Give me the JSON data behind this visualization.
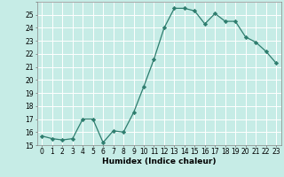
{
  "x": [
    0,
    1,
    2,
    3,
    4,
    5,
    6,
    7,
    8,
    9,
    10,
    11,
    12,
    13,
    14,
    15,
    16,
    17,
    18,
    19,
    20,
    21,
    22,
    23
  ],
  "y": [
    15.7,
    15.5,
    15.4,
    15.5,
    17.0,
    17.0,
    15.2,
    16.1,
    16.0,
    17.5,
    19.5,
    21.6,
    24.0,
    25.5,
    25.5,
    25.3,
    24.3,
    25.1,
    24.5,
    24.5,
    23.3,
    22.9,
    22.2,
    21.3
  ],
  "line_color": "#2e7d6e",
  "marker": "D",
  "marker_size": 2.2,
  "bg_color": "#c6ece6",
  "grid_color": "#b0d8d0",
  "xlabel": "Humidex (Indice chaleur)",
  "xlim": [
    -0.5,
    23.5
  ],
  "ylim": [
    15,
    26
  ],
  "yticks": [
    15,
    16,
    17,
    18,
    19,
    20,
    21,
    22,
    23,
    24,
    25
  ],
  "xticks": [
    0,
    1,
    2,
    3,
    4,
    5,
    6,
    7,
    8,
    9,
    10,
    11,
    12,
    13,
    14,
    15,
    16,
    17,
    18,
    19,
    20,
    21,
    22,
    23
  ],
  "tick_fontsize": 5.5,
  "label_fontsize": 6.5,
  "linewidth": 0.9
}
